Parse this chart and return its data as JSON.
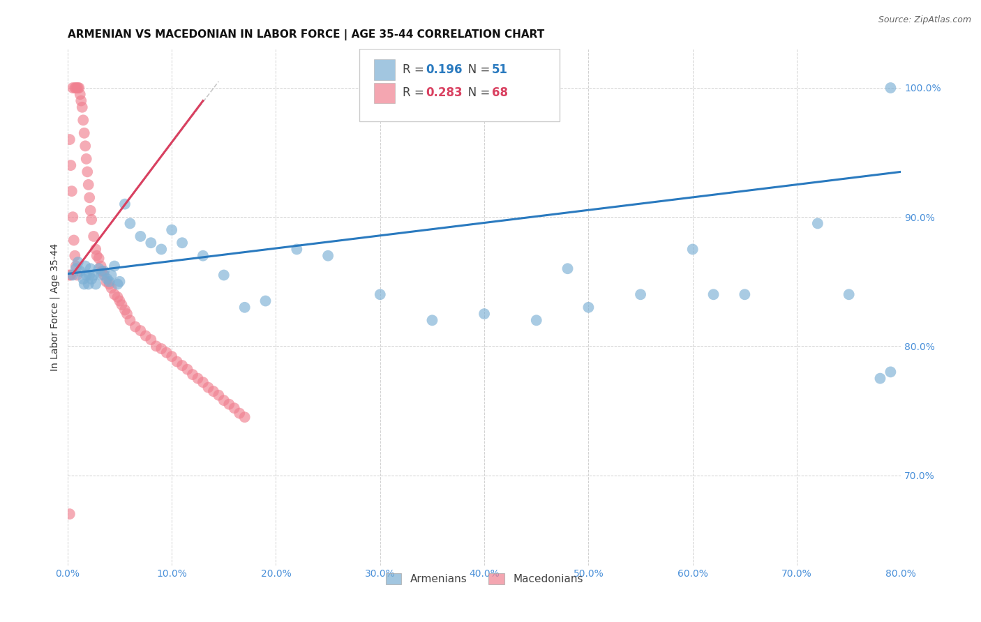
{
  "title": "ARMENIAN VS MACEDONIAN IN LABOR FORCE | AGE 35-44 CORRELATION CHART",
  "source": "Source: ZipAtlas.com",
  "ylabel": "In Labor Force | Age 35-44",
  "xlim": [
    0.0,
    0.8
  ],
  "ylim": [
    0.63,
    1.03
  ],
  "ytick_labels": [
    "70.0%",
    "80.0%",
    "90.0%",
    "100.0%"
  ],
  "ytick_values": [
    0.7,
    0.8,
    0.9,
    1.0
  ],
  "xtick_labels": [
    "0.0%",
    "10.0%",
    "20.0%",
    "30.0%",
    "40.0%",
    "50.0%",
    "60.0%",
    "70.0%",
    "80.0%"
  ],
  "xtick_values": [
    0.0,
    0.1,
    0.2,
    0.3,
    0.4,
    0.5,
    0.6,
    0.7,
    0.8
  ],
  "armenian_color": "#7bafd4",
  "macedonian_color": "#f08090",
  "armenian_line_color": "#2a7abf",
  "macedonian_line_color": "#d94060",
  "diagonal_color": "#cccccc",
  "title_fontsize": 11,
  "axis_label_fontsize": 10,
  "tick_fontsize": 9,
  "tick_color": "#4a90d9",
  "armenians_x": [
    0.005,
    0.008,
    0.01,
    0.012,
    0.015,
    0.016,
    0.017,
    0.018,
    0.02,
    0.021,
    0.022,
    0.023,
    0.025,
    0.027,
    0.03,
    0.032,
    0.035,
    0.038,
    0.04,
    0.042,
    0.045,
    0.048,
    0.05,
    0.055,
    0.06,
    0.07,
    0.08,
    0.09,
    0.1,
    0.11,
    0.13,
    0.15,
    0.17,
    0.19,
    0.22,
    0.25,
    0.3,
    0.35,
    0.4,
    0.45,
    0.48,
    0.5,
    0.55,
    0.6,
    0.62,
    0.65,
    0.72,
    0.75,
    0.78,
    0.79,
    0.79
  ],
  "armenians_y": [
    0.855,
    0.86,
    0.865,
    0.858,
    0.852,
    0.848,
    0.862,
    0.855,
    0.848,
    0.855,
    0.86,
    0.852,
    0.855,
    0.848,
    0.86,
    0.855,
    0.858,
    0.852,
    0.85,
    0.855,
    0.862,
    0.848,
    0.85,
    0.91,
    0.895,
    0.885,
    0.88,
    0.875,
    0.89,
    0.88,
    0.87,
    0.855,
    0.83,
    0.835,
    0.875,
    0.87,
    0.84,
    0.82,
    0.825,
    0.82,
    0.86,
    0.83,
    0.84,
    0.875,
    0.84,
    0.84,
    0.895,
    0.84,
    0.775,
    0.78,
    1.0
  ],
  "macedonians_x": [
    0.002,
    0.003,
    0.005,
    0.007,
    0.008,
    0.009,
    0.01,
    0.011,
    0.012,
    0.013,
    0.014,
    0.015,
    0.016,
    0.017,
    0.018,
    0.019,
    0.02,
    0.021,
    0.022,
    0.023,
    0.025,
    0.027,
    0.028,
    0.03,
    0.032,
    0.033,
    0.035,
    0.037,
    0.04,
    0.042,
    0.045,
    0.048,
    0.05,
    0.052,
    0.055,
    0.057,
    0.06,
    0.065,
    0.07,
    0.075,
    0.08,
    0.085,
    0.09,
    0.095,
    0.1,
    0.105,
    0.11,
    0.115,
    0.12,
    0.125,
    0.13,
    0.135,
    0.14,
    0.145,
    0.15,
    0.155,
    0.16,
    0.165,
    0.17,
    0.002,
    0.003,
    0.004,
    0.005,
    0.006,
    0.007,
    0.008,
    0.009,
    0.002
  ],
  "macedonians_y": [
    0.855,
    0.855,
    1.0,
    1.0,
    1.0,
    1.0,
    1.0,
    1.0,
    0.995,
    0.99,
    0.985,
    0.975,
    0.965,
    0.955,
    0.945,
    0.935,
    0.925,
    0.915,
    0.905,
    0.898,
    0.885,
    0.875,
    0.87,
    0.868,
    0.862,
    0.858,
    0.855,
    0.85,
    0.848,
    0.845,
    0.84,
    0.838,
    0.835,
    0.832,
    0.828,
    0.825,
    0.82,
    0.815,
    0.812,
    0.808,
    0.805,
    0.8,
    0.798,
    0.795,
    0.792,
    0.788,
    0.785,
    0.782,
    0.778,
    0.775,
    0.772,
    0.768,
    0.765,
    0.762,
    0.758,
    0.755,
    0.752,
    0.748,
    0.745,
    0.96,
    0.94,
    0.92,
    0.9,
    0.882,
    0.87,
    0.862,
    0.855,
    0.67
  ],
  "background_color": "#ffffff",
  "grid_color": "#cccccc"
}
